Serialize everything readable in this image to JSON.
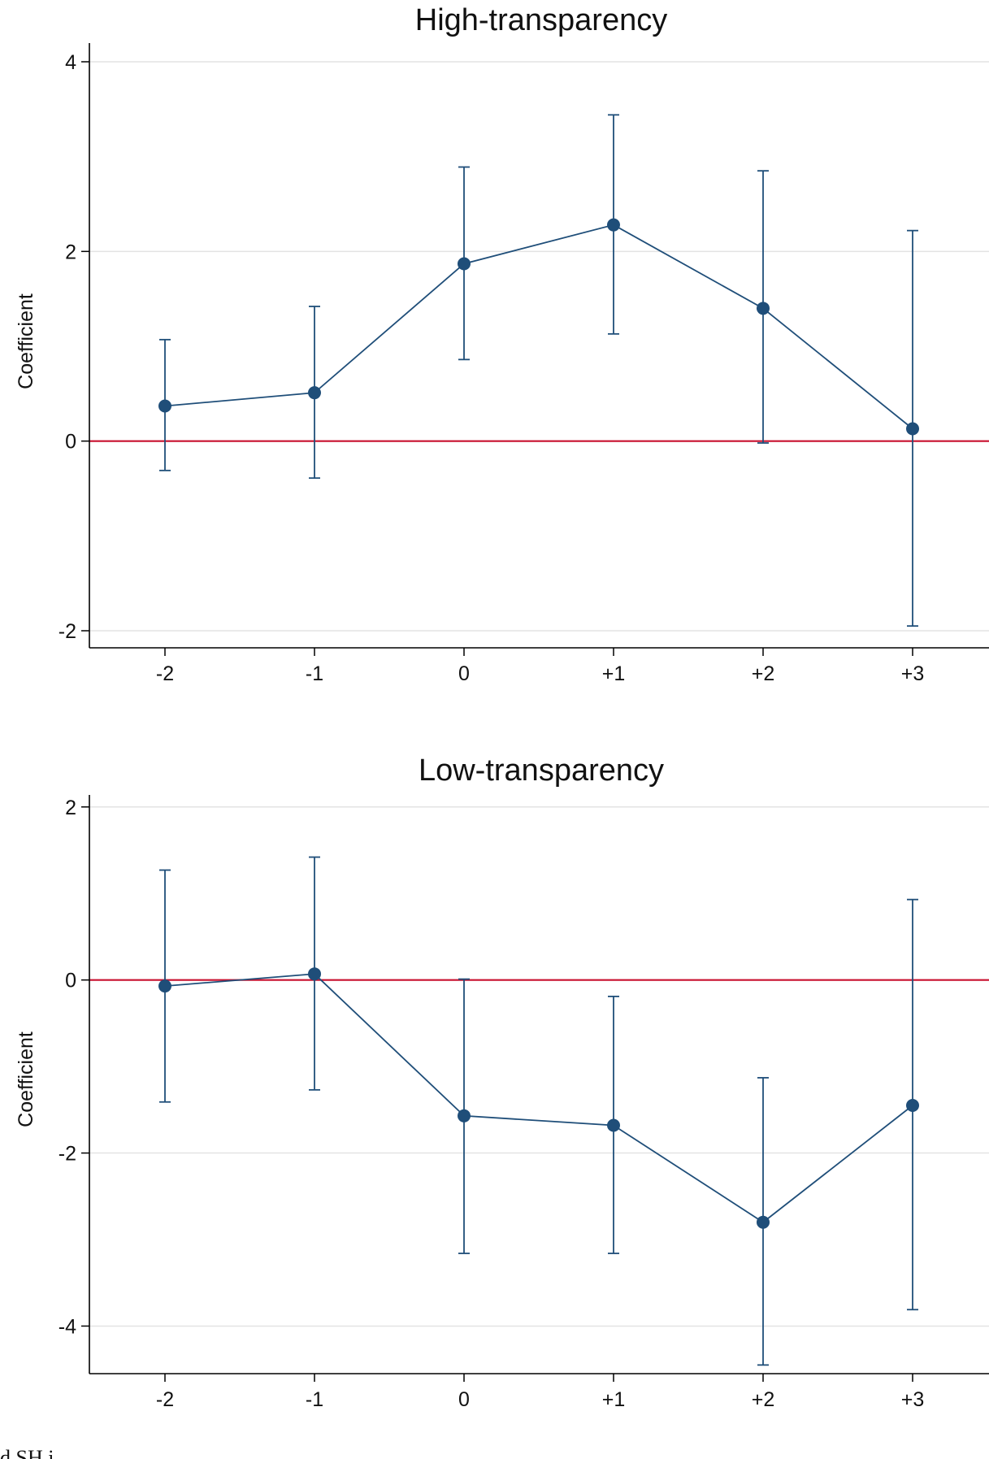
{
  "chart_data": [
    {
      "type": "line",
      "title": "High-transparency",
      "xlabel": "",
      "ylabel": "Coefficient",
      "categories": [
        "-2",
        "-1",
        "0",
        "+1",
        "+2",
        "+3"
      ],
      "yticks": [
        "-2",
        "0",
        "2",
        "4"
      ],
      "ylim": [
        -2.18,
        4.18
      ],
      "grid": true,
      "reference_line": 0,
      "series": [
        {
          "values": [
            0.37,
            0.51,
            1.87,
            2.28,
            1.4,
            0.13
          ],
          "ci_low": [
            -0.31,
            -0.39,
            0.86,
            1.13,
            -0.02,
            -1.95
          ],
          "ci_high": [
            1.07,
            1.42,
            2.89,
            3.44,
            2.85,
            2.22
          ]
        }
      ],
      "colors": {
        "series": "#1f4e79",
        "reference": "#c8102e",
        "grid": "#e3e3e3"
      }
    },
    {
      "type": "line",
      "title": "Low-transparency",
      "xlabel": "",
      "ylabel": "Coefficient",
      "categories": [
        "-2",
        "-1",
        "0",
        "+1",
        "+2",
        "+3"
      ],
      "yticks": [
        "-4",
        "-2",
        "0",
        "2"
      ],
      "ylim": [
        -4.55,
        2.12
      ],
      "grid": true,
      "reference_line": 0,
      "series": [
        {
          "values": [
            -0.07,
            0.07,
            -1.57,
            -1.68,
            -2.8,
            -1.45
          ],
          "ci_low": [
            -1.41,
            -1.27,
            -3.16,
            -3.16,
            -4.45,
            -3.81
          ],
          "ci_high": [
            1.27,
            1.42,
            0.01,
            -0.19,
            -1.13,
            0.93
          ]
        }
      ],
      "colors": {
        "series": "#1f4e79",
        "reference": "#c8102e",
        "grid": "#e3e3e3"
      }
    }
  ],
  "footer_text": "d SH i"
}
